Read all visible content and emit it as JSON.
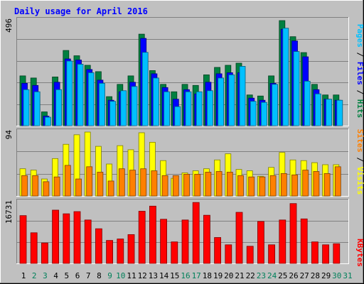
{
  "chart_data": [
    {
      "type": "bar",
      "title": "Daily usage for April 2016",
      "ymax_label": "496",
      "ylim": [
        0,
        496
      ],
      "categories": [
        "1",
        "2",
        "3",
        "4",
        "5",
        "6",
        "7",
        "8",
        "9",
        "10",
        "11",
        "12",
        "13",
        "14",
        "15",
        "16",
        "17",
        "18",
        "19",
        "20",
        "21",
        "22",
        "23",
        "24",
        "25",
        "26",
        "27",
        "28",
        "29",
        "30",
        "31"
      ],
      "weekend_days": [
        "2",
        "3",
        "9",
        "10",
        "16",
        "17",
        "23",
        "24",
        "30",
        "31"
      ],
      "grid": true,
      "legend_position": "right-vertical",
      "series": [
        {
          "name": "Hits",
          "color": "#008040",
          "values": [
            235,
            225,
            65,
            230,
            355,
            330,
            285,
            255,
            137,
            195,
            235,
            432,
            260,
            195,
            160,
            195,
            190,
            240,
            275,
            285,
            295,
            145,
            140,
            235,
            496,
            420,
            345,
            195,
            145,
            145,
            0
          ]
        },
        {
          "name": "Files",
          "color": "#0000ff",
          "values": [
            200,
            190,
            45,
            205,
            315,
            310,
            265,
            215,
            120,
            160,
            205,
            412,
            245,
            180,
            125,
            170,
            150,
            205,
            245,
            250,
            250,
            130,
            120,
            200,
            455,
            400,
            325,
            170,
            125,
            120,
            0
          ]
        },
        {
          "name": "Pages",
          "color": "#00c0ff",
          "values": [
            170,
            160,
            40,
            170,
            305,
            290,
            250,
            200,
            115,
            165,
            185,
            346,
            225,
            160,
            90,
            160,
            160,
            165,
            225,
            240,
            280,
            115,
            110,
            195,
            460,
            350,
            210,
            150,
            125,
            120,
            0
          ]
        }
      ]
    },
    {
      "type": "bar",
      "ymax_label": "94",
      "ylim": [
        0,
        94
      ],
      "categories": [
        "1",
        "2",
        "3",
        "4",
        "5",
        "6",
        "7",
        "8",
        "9",
        "10",
        "11",
        "12",
        "13",
        "14",
        "15",
        "16",
        "17",
        "18",
        "19",
        "20",
        "21",
        "22",
        "23",
        "24",
        "25",
        "26",
        "27",
        "28",
        "29",
        "30",
        "31"
      ],
      "grid": true,
      "series": [
        {
          "name": "Visits",
          "color": "#ffff00",
          "values": [
            40,
            38,
            25,
            55,
            76,
            90,
            94,
            73,
            47,
            74,
            68,
            93,
            79,
            52,
            26,
            34,
            37,
            40,
            53,
            62,
            39,
            37,
            29,
            42,
            64,
            53,
            52,
            49,
            46,
            46,
            0
          ]
        },
        {
          "name": "Sites",
          "color": "#ff8000",
          "values": [
            30,
            30,
            21,
            28,
            45,
            25,
            43,
            35,
            22,
            40,
            38,
            40,
            37,
            30,
            30,
            32,
            32,
            35,
            36,
            35,
            30,
            28,
            28,
            30,
            33,
            31,
            38,
            36,
            33,
            43,
            0
          ]
        }
      ]
    },
    {
      "type": "bar",
      "ymax_label": "16731",
      "ylim": [
        0,
        16731
      ],
      "categories": [
        "1",
        "2",
        "3",
        "4",
        "5",
        "6",
        "7",
        "8",
        "9",
        "10",
        "11",
        "12",
        "13",
        "14",
        "15",
        "16",
        "17",
        "18",
        "19",
        "20",
        "21",
        "22",
        "23",
        "24",
        "25",
        "26",
        "27",
        "28",
        "29",
        "30",
        "31"
      ],
      "grid": true,
      "series": [
        {
          "name": "KBytes",
          "color": "#ff0000",
          "values": [
            13100,
            8400,
            5600,
            14600,
            13600,
            14200,
            11900,
            9500,
            6300,
            6700,
            7900,
            14300,
            15700,
            12100,
            5900,
            11900,
            16700,
            13200,
            7100,
            5100,
            14000,
            4700,
            11500,
            5100,
            11900,
            16400,
            12200,
            5900,
            5100,
            5400,
            0
          ]
        }
      ]
    }
  ]
}
